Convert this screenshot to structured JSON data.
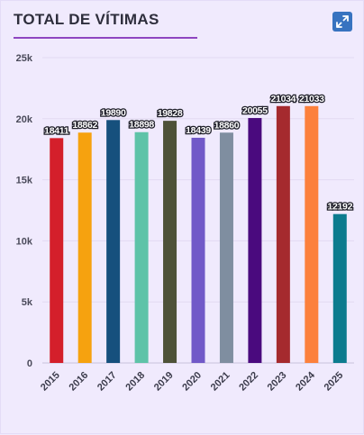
{
  "header": {
    "title": "TOTAL DE VÍTIMAS",
    "expand_icon": "expand-arrows-icon",
    "accent_color": "#8e45c1",
    "button_color": "#3873c0"
  },
  "chart_data": {
    "type": "bar",
    "title": "TOTAL DE VÍTIMAS",
    "xlabel": "",
    "ylabel": "",
    "categories": [
      "2015",
      "2016",
      "2017",
      "2018",
      "2019",
      "2020",
      "2021",
      "2022",
      "2023",
      "2024",
      "2025"
    ],
    "values": [
      18411,
      18862,
      19890,
      18898,
      19828,
      18439,
      18860,
      20055,
      21034,
      21033,
      12192
    ],
    "data_labels": [
      "18411",
      "18862",
      "19890",
      "18898",
      "19828",
      "18439",
      "18860",
      "20055",
      "21034",
      "21033",
      "12192"
    ],
    "colors": [
      "#d41f2b",
      "#f6a20f",
      "#16507d",
      "#5ec3a8",
      "#4e5238",
      "#7159c8",
      "#7f8ea0",
      "#4a0a7e",
      "#a52a2e",
      "#fc803c",
      "#0c7b8e"
    ],
    "ylim": [
      0,
      25000
    ],
    "y_ticks": [
      0,
      5000,
      10000,
      15000,
      20000,
      25000
    ],
    "y_tick_labels": [
      "0",
      "5k",
      "10k",
      "15k",
      "20k",
      "25k"
    ],
    "grid": true,
    "legend": "none"
  }
}
